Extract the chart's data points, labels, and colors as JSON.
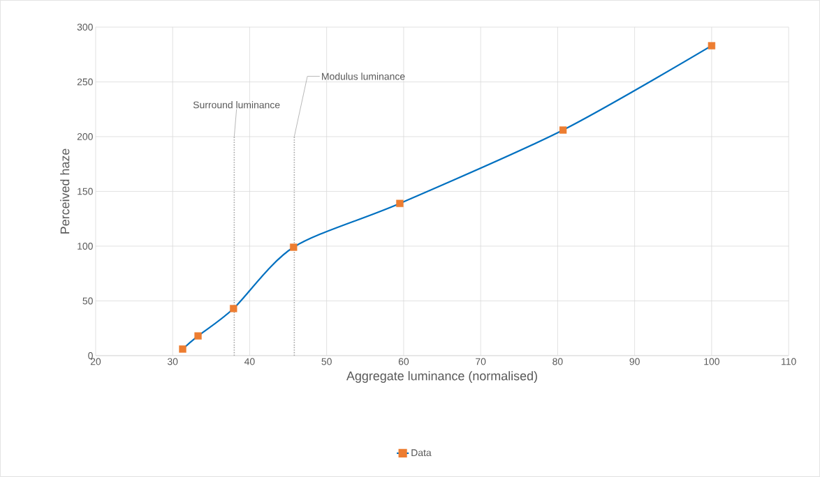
{
  "chart_data": {
    "type": "line",
    "xlabel": "Aggregate luminance (normalised)",
    "ylabel": "Perceived haze",
    "x": [
      31.3,
      33.3,
      37.9,
      45.7,
      59.5,
      80.7,
      100
    ],
    "series": [
      {
        "name": "Data",
        "color": "#0070c0",
        "colors": [
          "#ed7d31",
          "#ed7d31",
          "#ed7d31",
          "#ed7d31",
          "#ed7d31",
          "#ed7d31",
          "#ed7d31"
        ],
        "values": [
          6,
          18,
          43,
          99,
          139,
          206,
          283
        ]
      }
    ],
    "xlim": [
      20,
      110
    ],
    "xticks": [
      20,
      30,
      40,
      50,
      60,
      70,
      80,
      90,
      100,
      110
    ],
    "ylim": [
      0,
      300
    ],
    "yticks": [
      0,
      50,
      100,
      150,
      200,
      250,
      300
    ],
    "grid": true,
    "legend": "bottom",
    "marker": "square",
    "line_style": "solid",
    "ref_lines": [
      {
        "axis": "x",
        "value": 38,
        "label": "Surround luminance",
        "color": "#a6a6a6",
        "line_style": "dotted"
      },
      {
        "axis": "x",
        "value": 45.8,
        "label": "Modulus luminance",
        "color": "#a6a6a6",
        "line_style": "dotted"
      }
    ]
  }
}
